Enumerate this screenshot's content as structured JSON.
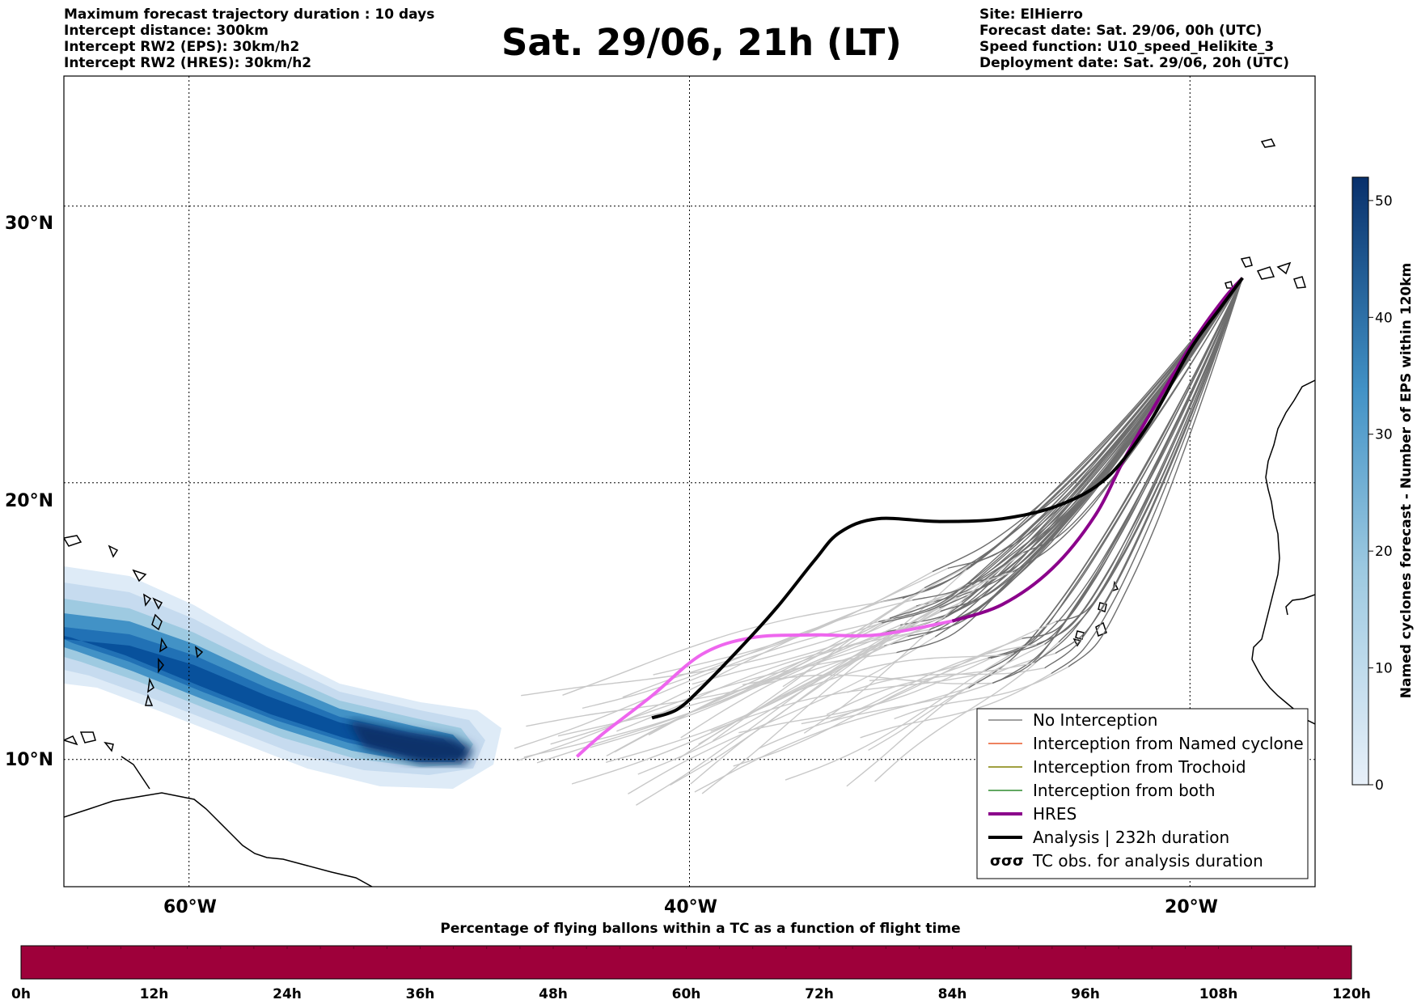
{
  "header_left": [
    "Maximum forecast trajectory duration : 10 days",
    "Intercept distance: 300km",
    "Intercept RW2 (EPS):  30km/h2",
    "Intercept RW2 (HRES): 30km/h2"
  ],
  "title": "Sat. 29/06, 21h (LT)",
  "header_right": [
    "Site: ElHierro",
    "Forecast date: Sat. 29/06, 00h (UTC)",
    "Speed function: U10_speed_Helikite_3",
    "Deployment date: Sat. 29/06, 20h (UTC)"
  ],
  "map": {
    "lat_labels": [
      "30°N",
      "20°N",
      "10°N"
    ],
    "lon_labels": [
      "60°W",
      "40°W",
      "20°W"
    ],
    "lat_lines": [
      30,
      20,
      10
    ],
    "lon_lines": [
      -60,
      -40,
      -20
    ],
    "extent": {
      "lon_min": -65,
      "lon_max": -15,
      "lat_min": 5.4,
      "lat_max": 34.7
    }
  },
  "colorbar": {
    "label": "Named cyclones forecast - Number of EPS within 120km",
    "ticks": [
      "0",
      "10",
      "20",
      "30",
      "40",
      "50"
    ],
    "tick_values": [
      0,
      10,
      20,
      30,
      40,
      50
    ],
    "min": 0,
    "max": 52,
    "color_low": "#e8f0f9",
    "color_high": "#08306b"
  },
  "legend": {
    "items": [
      {
        "label": "No Interception",
        "color": "#808080",
        "style": "thin"
      },
      {
        "label": "Interception from Named cyclone",
        "color": "#e8582a",
        "style": "thin"
      },
      {
        "label": "Interception from Trochoid",
        "color": "#808000",
        "style": "thin"
      },
      {
        "label": "Interception from both",
        "color": "#2e8b2e",
        "style": "thin"
      },
      {
        "label": "HRES",
        "color": "#8b008b",
        "style": "thick"
      },
      {
        "label": "Analysis | 232h duration",
        "color": "#000000",
        "style": "thick"
      },
      {
        "label": "TC obs. for analysis duration",
        "color": "#000000",
        "style": "symbol"
      }
    ]
  },
  "flight_bar": {
    "title": "Percentage of flying ballons within a TC as a function of flight time",
    "ticks": [
      "0h",
      "12h",
      "24h",
      "36h",
      "48h",
      "60h",
      "72h",
      "84h",
      "96h",
      "108h",
      "120h"
    ],
    "color": "#9e003a"
  },
  "tracks": {
    "hres": [
      [
        -29.5,
        15.0
      ],
      [
        -27.5,
        15.6
      ],
      [
        -25.5,
        16.9
      ],
      [
        -23.8,
        18.8
      ],
      [
        -22.6,
        20.9
      ],
      [
        -21.2,
        23.1
      ],
      [
        -19.8,
        25.2
      ],
      [
        -18.6,
        26.7
      ],
      [
        -17.9,
        27.4
      ]
    ],
    "hres_light": [
      [
        -44.5,
        10.1
      ],
      [
        -43.5,
        10.9
      ],
      [
        -41.5,
        12.3
      ],
      [
        -39.5,
        13.8
      ],
      [
        -37.5,
        14.4
      ],
      [
        -35,
        14.5
      ],
      [
        -32.5,
        14.5
      ],
      [
        -29.5,
        15.0
      ]
    ],
    "analysis": [
      [
        -41.5,
        11.5
      ],
      [
        -40.5,
        11.8
      ],
      [
        -39.5,
        12.6
      ],
      [
        -38.0,
        14.0
      ],
      [
        -36.5,
        15.5
      ],
      [
        -35.0,
        17.2
      ],
      [
        -34.0,
        18.2
      ],
      [
        -32.5,
        18.7
      ],
      [
        -30,
        18.6
      ],
      [
        -27.5,
        18.7
      ],
      [
        -25.2,
        19.2
      ],
      [
        -23.3,
        20.2
      ],
      [
        -21.6,
        22.2
      ],
      [
        -20.0,
        24.8
      ],
      [
        -18.8,
        26.3
      ],
      [
        -17.9,
        27.4
      ]
    ]
  }
}
